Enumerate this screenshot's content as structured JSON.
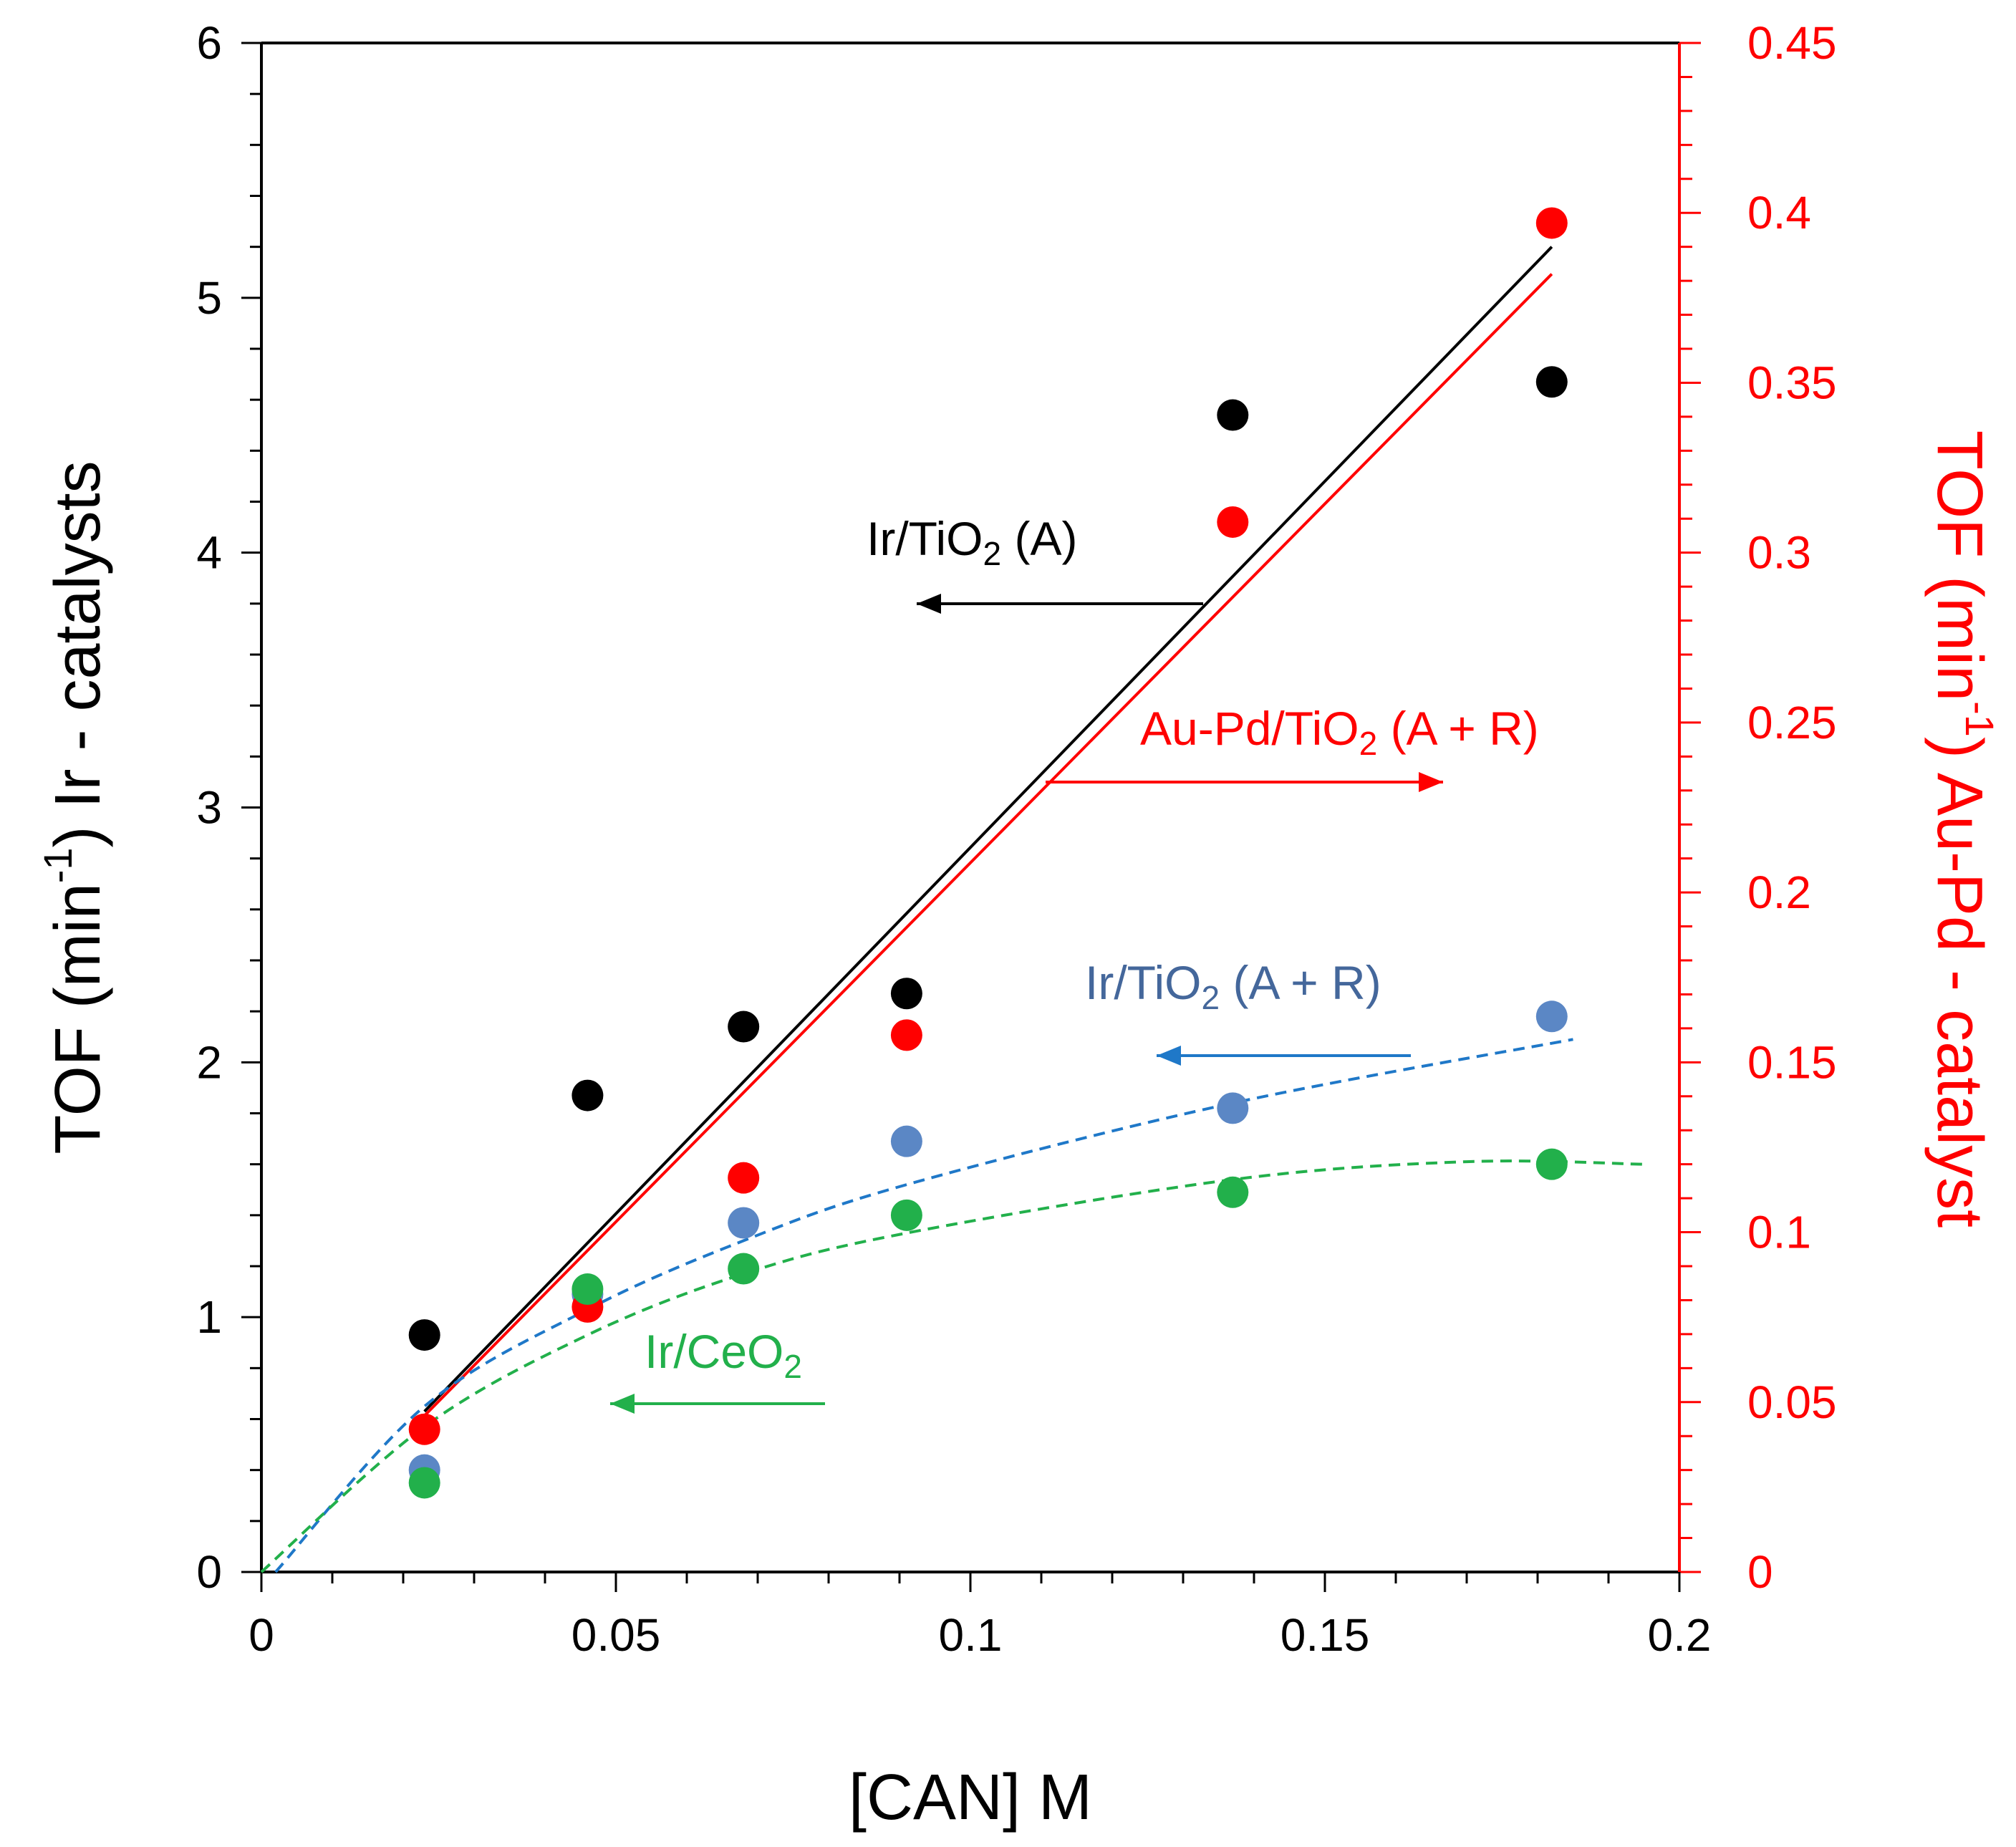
{
  "chart_data": {
    "type": "scatter",
    "title": "",
    "xlabel": "[CAN] M",
    "ylabel_left": {
      "pre": "TOF (min",
      "sup": "-1",
      "post": ") Ir - catalysts"
    },
    "ylabel_right": {
      "pre": "TOF (min",
      "sup": "-1",
      "post": ") Au-Pd - catalyst"
    },
    "xlim": [
      0,
      0.2
    ],
    "ylim_left": [
      0,
      6
    ],
    "ylim_right": [
      0,
      0.45
    ],
    "x_ticks": [
      "0",
      "0.05",
      "0.1",
      "0.15",
      "0.2"
    ],
    "y_left_ticks": [
      "0",
      "1",
      "2",
      "3",
      "4",
      "5",
      "6"
    ],
    "y_right_ticks": [
      "0",
      "0.05",
      "0.1",
      "0.15",
      "0.2",
      "0.25",
      "0.3",
      "0.35",
      "0.4",
      "0.45"
    ],
    "grid": false,
    "colors": {
      "black": "#000000",
      "red": "#ff0000",
      "blue": "#5b87c5",
      "green": "#22b04b",
      "blue_line": "#1f78c8",
      "green_line": "#22b04b"
    },
    "series": [
      {
        "name": "Ir/TiO2 (A)",
        "label": {
          "pre": "Ir/TiO",
          "sub": "2",
          "post": " (A)"
        },
        "axis": "left",
        "color": "#000000",
        "x": [
          0.023,
          0.046,
          0.068,
          0.091,
          0.137,
          0.182
        ],
        "y": [
          0.93,
          1.87,
          2.14,
          2.27,
          4.54,
          4.67
        ],
        "fit": {
          "style": "solid",
          "x": [
            0.023,
            0.182
          ],
          "y": [
            0.63,
            5.2
          ]
        }
      },
      {
        "name": "Au-Pd/TiO2 (A + R)",
        "label": {
          "pre": "Au-Pd/TiO",
          "sub": "2",
          "post": " (A + R)"
        },
        "axis": "right",
        "color": "#ff0000",
        "x": [
          0.023,
          0.046,
          0.068,
          0.091,
          0.137,
          0.182
        ],
        "y": [
          0.042,
          0.078,
          0.116,
          0.158,
          0.309,
          0.397
        ],
        "fit": {
          "style": "solid",
          "x": [
            0.023,
            0.182
          ],
          "y": [
            0.046,
            0.382
          ]
        }
      },
      {
        "name": "Ir/TiO2 (A + R)",
        "label": {
          "pre": "Ir/TiO",
          "sub": "2",
          "post": " (A + R)"
        },
        "axis": "left",
        "color": "#5b87c5",
        "x": [
          0.023,
          0.046,
          0.068,
          0.091,
          0.137,
          0.182
        ],
        "y": [
          0.4,
          1.09,
          1.37,
          1.69,
          1.82,
          2.18
        ],
        "fit": {
          "style": "dashed",
          "x": [
            0.002,
            0.023,
            0.046,
            0.068,
            0.091,
            0.137,
            0.185
          ],
          "y": [
            0.0,
            0.65,
            1.03,
            1.3,
            1.52,
            1.84,
            2.09
          ]
        }
      },
      {
        "name": "Ir/CeO2",
        "label": {
          "pre": "Ir/CeO",
          "sub": "2",
          "post": ""
        },
        "axis": "left",
        "color": "#22b04b",
        "x": [
          0.023,
          0.046,
          0.068,
          0.091,
          0.137,
          0.182
        ],
        "y": [
          0.35,
          1.11,
          1.19,
          1.4,
          1.49,
          1.6
        ],
        "fit": {
          "style": "dashed",
          "x": [
            0.0,
            0.023,
            0.046,
            0.068,
            0.091,
            0.137,
            0.17,
            0.195
          ],
          "y": [
            0.0,
            0.57,
            0.93,
            1.17,
            1.33,
            1.54,
            1.61,
            1.6
          ]
        }
      }
    ],
    "annotations": [
      {
        "series": "Ir/TiO2 (A)",
        "arrow_direction": "left",
        "axis": "left"
      },
      {
        "series": "Au-Pd/TiO2 (A + R)",
        "arrow_direction": "right",
        "axis": "right"
      },
      {
        "series": "Ir/TiO2 (A + R)",
        "arrow_direction": "left",
        "axis": "left"
      },
      {
        "series": "Ir/CeO2",
        "arrow_direction": "left",
        "axis": "left"
      }
    ]
  }
}
